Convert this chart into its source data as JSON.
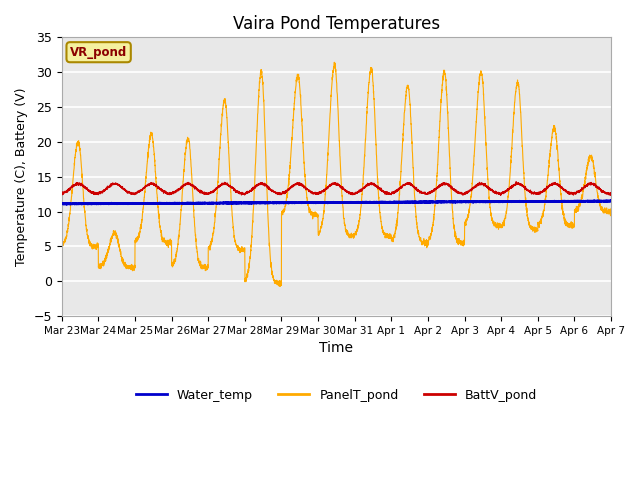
{
  "title": "Vaira Pond Temperatures",
  "xlabel": "Time",
  "ylabel": "Temperature (C), Battery (V)",
  "ylim": [
    -5,
    35
  ],
  "yticks": [
    -5,
    0,
    5,
    10,
    15,
    20,
    25,
    30,
    35
  ],
  "site_label": "VR_pond",
  "bg_color": "#e8e8e8",
  "grid_color": "white",
  "legend_labels": [
    "Water_temp",
    "PanelT_pond",
    "BattV_pond"
  ],
  "water_temp_color": "#0000cc",
  "panel_color": "#ffaa00",
  "batt_color": "#cc0000",
  "x_tick_labels": [
    "Mar 23",
    "Mar 24",
    "Mar 25",
    "Mar 26",
    "Mar 27",
    "Mar 28",
    "Mar 29",
    "Mar 30",
    "Mar 31",
    "Apr 1",
    "Apr 2",
    "Apr 3",
    "Apr 4",
    "Apr 5",
    "Apr 6",
    "Apr 7"
  ],
  "n_days": 15,
  "figsize": [
    6.4,
    4.8
  ],
  "dpi": 100
}
